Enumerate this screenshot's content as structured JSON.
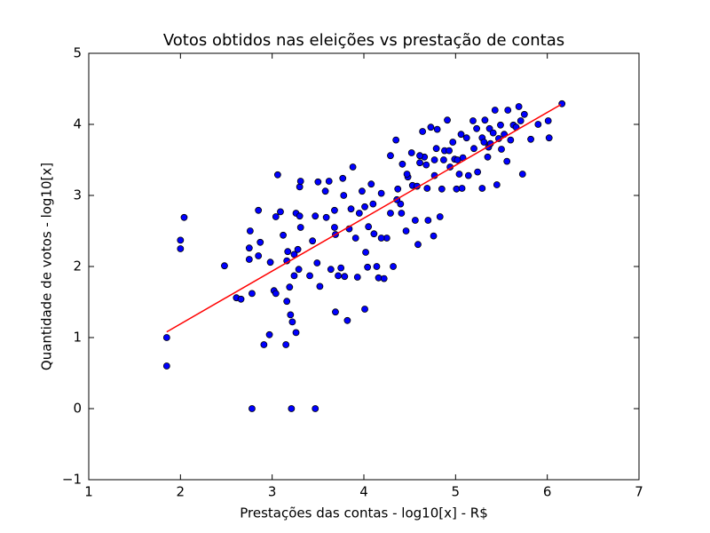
{
  "chart_data": {
    "type": "scatter",
    "title": "Votos obtidos nas eleições vs prestação de contas",
    "x_label": "Prestações das contas - log10[x] - R$",
    "y_label": "Quantidade de votos - log10[x]",
    "xlim": [
      1,
      7
    ],
    "ylim": [
      -1,
      5
    ],
    "xticks": [
      1,
      2,
      3,
      4,
      5,
      6,
      7
    ],
    "yticks": [
      {
        "value": -1,
        "label": "−1"
      },
      0,
      1,
      2,
      3,
      4,
      5
    ],
    "color": "#0000ff",
    "x": [
      1.85,
      1.85,
      2.0,
      2.0,
      2.04,
      2.48,
      2.61,
      2.66,
      2.78,
      2.76,
      2.75,
      2.75,
      2.78,
      2.85,
      2.85,
      2.87,
      2.91,
      2.97,
      2.98,
      3.02,
      3.04,
      3.06,
      3.04,
      3.09,
      3.12,
      3.15,
      3.16,
      3.16,
      3.17,
      3.19,
      3.2,
      3.21,
      3.22,
      3.24,
      3.26,
      3.24,
      3.26,
      3.28,
      3.29,
      3.3,
      3.31,
      3.3,
      3.31,
      3.41,
      3.44,
      3.47,
      3.47,
      3.49,
      3.52,
      3.58,
      3.59,
      3.62,
      3.64,
      3.69,
      3.69,
      3.68,
      3.72,
      3.75,
      3.79,
      3.77,
      3.82,
      3.84,
      3.88,
      3.91,
      3.93,
      3.98,
      4.01,
      4.01,
      4.02,
      4.04,
      4.08,
      4.11,
      4.14,
      4.16,
      4.19,
      4.22,
      4.25,
      4.29,
      4.29,
      4.32,
      4.35,
      4.37,
      4.4,
      4.42,
      4.46,
      4.48,
      4.52,
      4.53,
      4.56,
      4.59,
      4.61,
      4.64,
      4.66,
      4.69,
      4.7,
      4.73,
      4.76,
      4.77,
      4.77,
      4.8,
      4.83,
      4.85,
      4.88,
      4.91,
      4.94,
      4.97,
      4.99,
      5.01,
      5.04,
      5.06,
      5.07,
      5.08,
      5.14,
      5.19,
      5.2,
      5.24,
      5.29,
      5.29,
      5.32,
      5.35,
      5.36,
      5.37,
      5.41,
      5.43,
      5.45,
      5.47,
      5.5,
      5.53,
      5.56,
      5.57,
      5.63,
      5.66,
      5.69,
      5.71,
      5.73,
      5.75,
      5.82,
      5.9,
      6.01,
      6.02,
      6.16,
      3.68,
      3.86,
      3.95,
      4.1,
      4.19,
      4.36,
      4.41,
      4.47,
      4.58,
      4.61,
      4.68,
      4.79,
      4.87,
      4.93,
      5.02,
      5.12,
      5.23,
      5.31,
      5.38,
      5.49,
      5.6,
      3.5,
      3.78,
      4.05
    ],
    "values": [
      0.6,
      1.0,
      2.37,
      2.25,
      2.69,
      2.01,
      1.56,
      1.54,
      0.0,
      2.5,
      2.26,
      2.1,
      1.62,
      2.79,
      2.15,
      2.34,
      0.9,
      1.04,
      2.06,
      1.66,
      2.7,
      3.29,
      1.62,
      2.77,
      2.44,
      0.9,
      1.51,
      2.08,
      2.21,
      1.71,
      1.32,
      0.0,
      1.22,
      1.87,
      1.07,
      2.17,
      2.75,
      2.24,
      1.96,
      3.12,
      3.2,
      2.71,
      2.55,
      1.87,
      2.36,
      0.0,
      2.71,
      2.05,
      1.72,
      3.06,
      2.69,
      3.2,
      1.96,
      1.36,
      2.45,
      2.79,
      1.87,
      1.98,
      1.86,
      3.24,
      1.24,
      2.53,
      3.4,
      2.4,
      1.85,
      3.06,
      1.4,
      2.84,
      2.2,
      1.99,
      3.16,
      2.46,
      2.0,
      1.84,
      3.03,
      1.83,
      2.4,
      3.56,
      2.75,
      2.0,
      3.78,
      3.09,
      2.88,
      3.44,
      2.5,
      3.26,
      3.6,
      3.14,
      2.65,
      2.31,
      3.46,
      3.9,
      3.54,
      3.1,
      2.65,
      3.96,
      2.43,
      3.5,
      3.28,
      3.93,
      2.7,
      3.09,
      3.63,
      4.06,
      3.4,
      3.75,
      3.51,
      3.09,
      3.3,
      3.86,
      3.1,
      3.53,
      3.28,
      4.05,
      3.66,
      3.33,
      3.1,
      3.81,
      4.06,
      3.54,
      3.68,
      3.94,
      3.88,
      4.2,
      3.15,
      3.8,
      3.65,
      3.86,
      3.48,
      4.2,
      3.99,
      3.96,
      4.25,
      4.05,
      3.3,
      4.14,
      3.79,
      4.0,
      4.05,
      3.81,
      4.29,
      2.55,
      2.81,
      2.75,
      2.88,
      2.4,
      2.94,
      2.75,
      3.3,
      3.13,
      3.56,
      3.43,
      3.66,
      3.5,
      3.63,
      3.5,
      3.81,
      3.94,
      3.75,
      3.73,
      3.99,
      3.78,
      3.19,
      3.0,
      2.56
    ],
    "fit": {
      "x": [
        1.85,
        6.15
      ],
      "values": [
        1.08,
        4.28
      ],
      "color": "#ff0000"
    }
  }
}
